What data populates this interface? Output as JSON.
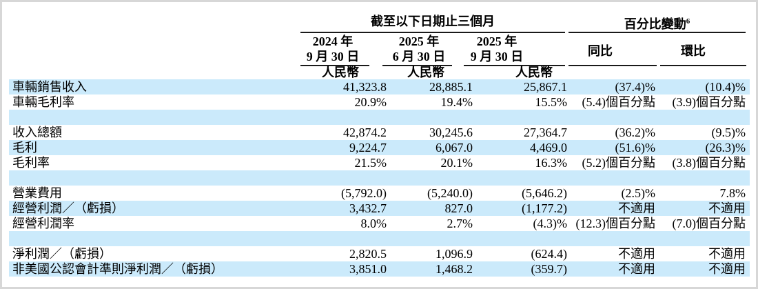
{
  "colors": {
    "row_highlight": "#cbeafb",
    "frame": "#d7d7d7",
    "rule": "#1a1a1a",
    "text": "#000000"
  },
  "table": {
    "group_headers": {
      "period": "截至以下日期止三個月",
      "change": "百分比變動",
      "change_footnote": "6"
    },
    "columns": [
      {
        "line1": "2024 年",
        "line2": "9 月 30 日",
        "currency": "人民幣"
      },
      {
        "line1": "2025 年",
        "line2": "6 月 30 日",
        "currency": "人民幣"
      },
      {
        "line1": "2025 年",
        "line2": "9 月 30 日",
        "currency": "人民幣"
      },
      {
        "label": "同比"
      },
      {
        "label": "環比"
      }
    ],
    "rows": [
      {
        "blank": false,
        "label": "車輛銷售收入",
        "values": [
          "41,323.8",
          "28,885.1",
          "25,867.1",
          "(37.4)%",
          "(10.4)%"
        ]
      },
      {
        "blank": false,
        "label": "車輛毛利率",
        "values": [
          "20.9%",
          "19.4%",
          "15.5%",
          "(5.4)個百分點",
          "(3.9)個百分點"
        ]
      },
      {
        "blank": true
      },
      {
        "blank": false,
        "label": "收入總額",
        "values": [
          "42,874.2",
          "30,245.6",
          "27,364.7",
          "(36.2)%",
          "(9.5)%"
        ]
      },
      {
        "blank": false,
        "label": "毛利",
        "values": [
          "9,224.7",
          "6,067.0",
          "4,469.0",
          "(51.6)%",
          "(26.3)%"
        ]
      },
      {
        "blank": false,
        "label": "毛利率",
        "values": [
          "21.5%",
          "20.1%",
          "16.3%",
          "(5.2)個百分點",
          "(3.8)個百分點"
        ]
      },
      {
        "blank": true
      },
      {
        "blank": false,
        "label": "營業費用",
        "values": [
          "(5,792.0)",
          "(5,240.0)",
          "(5,646.2)",
          "(2.5)%",
          "7.8%"
        ]
      },
      {
        "blank": false,
        "label": "經營利潤／（虧損）",
        "values": [
          "3,432.7",
          "827.0",
          "(1,177.2)",
          "不適用",
          "不適用"
        ]
      },
      {
        "blank": false,
        "label": "經營利潤率",
        "values": [
          "8.0%",
          "2.7%",
          "(4.3)%",
          "(12.3)個百分點",
          "(7.0)個百分點"
        ]
      },
      {
        "blank": true
      },
      {
        "blank": false,
        "label": "淨利潤／（虧損）",
        "values": [
          "2,820.5",
          "1,096.9",
          "(624.4)",
          "不適用",
          "不適用"
        ]
      },
      {
        "blank": false,
        "label": "非美國公認會計準則淨利潤／（虧損）",
        "values": [
          "3,851.0",
          "1,468.2",
          "(359.7)",
          "不適用",
          "不適用"
        ]
      }
    ]
  }
}
